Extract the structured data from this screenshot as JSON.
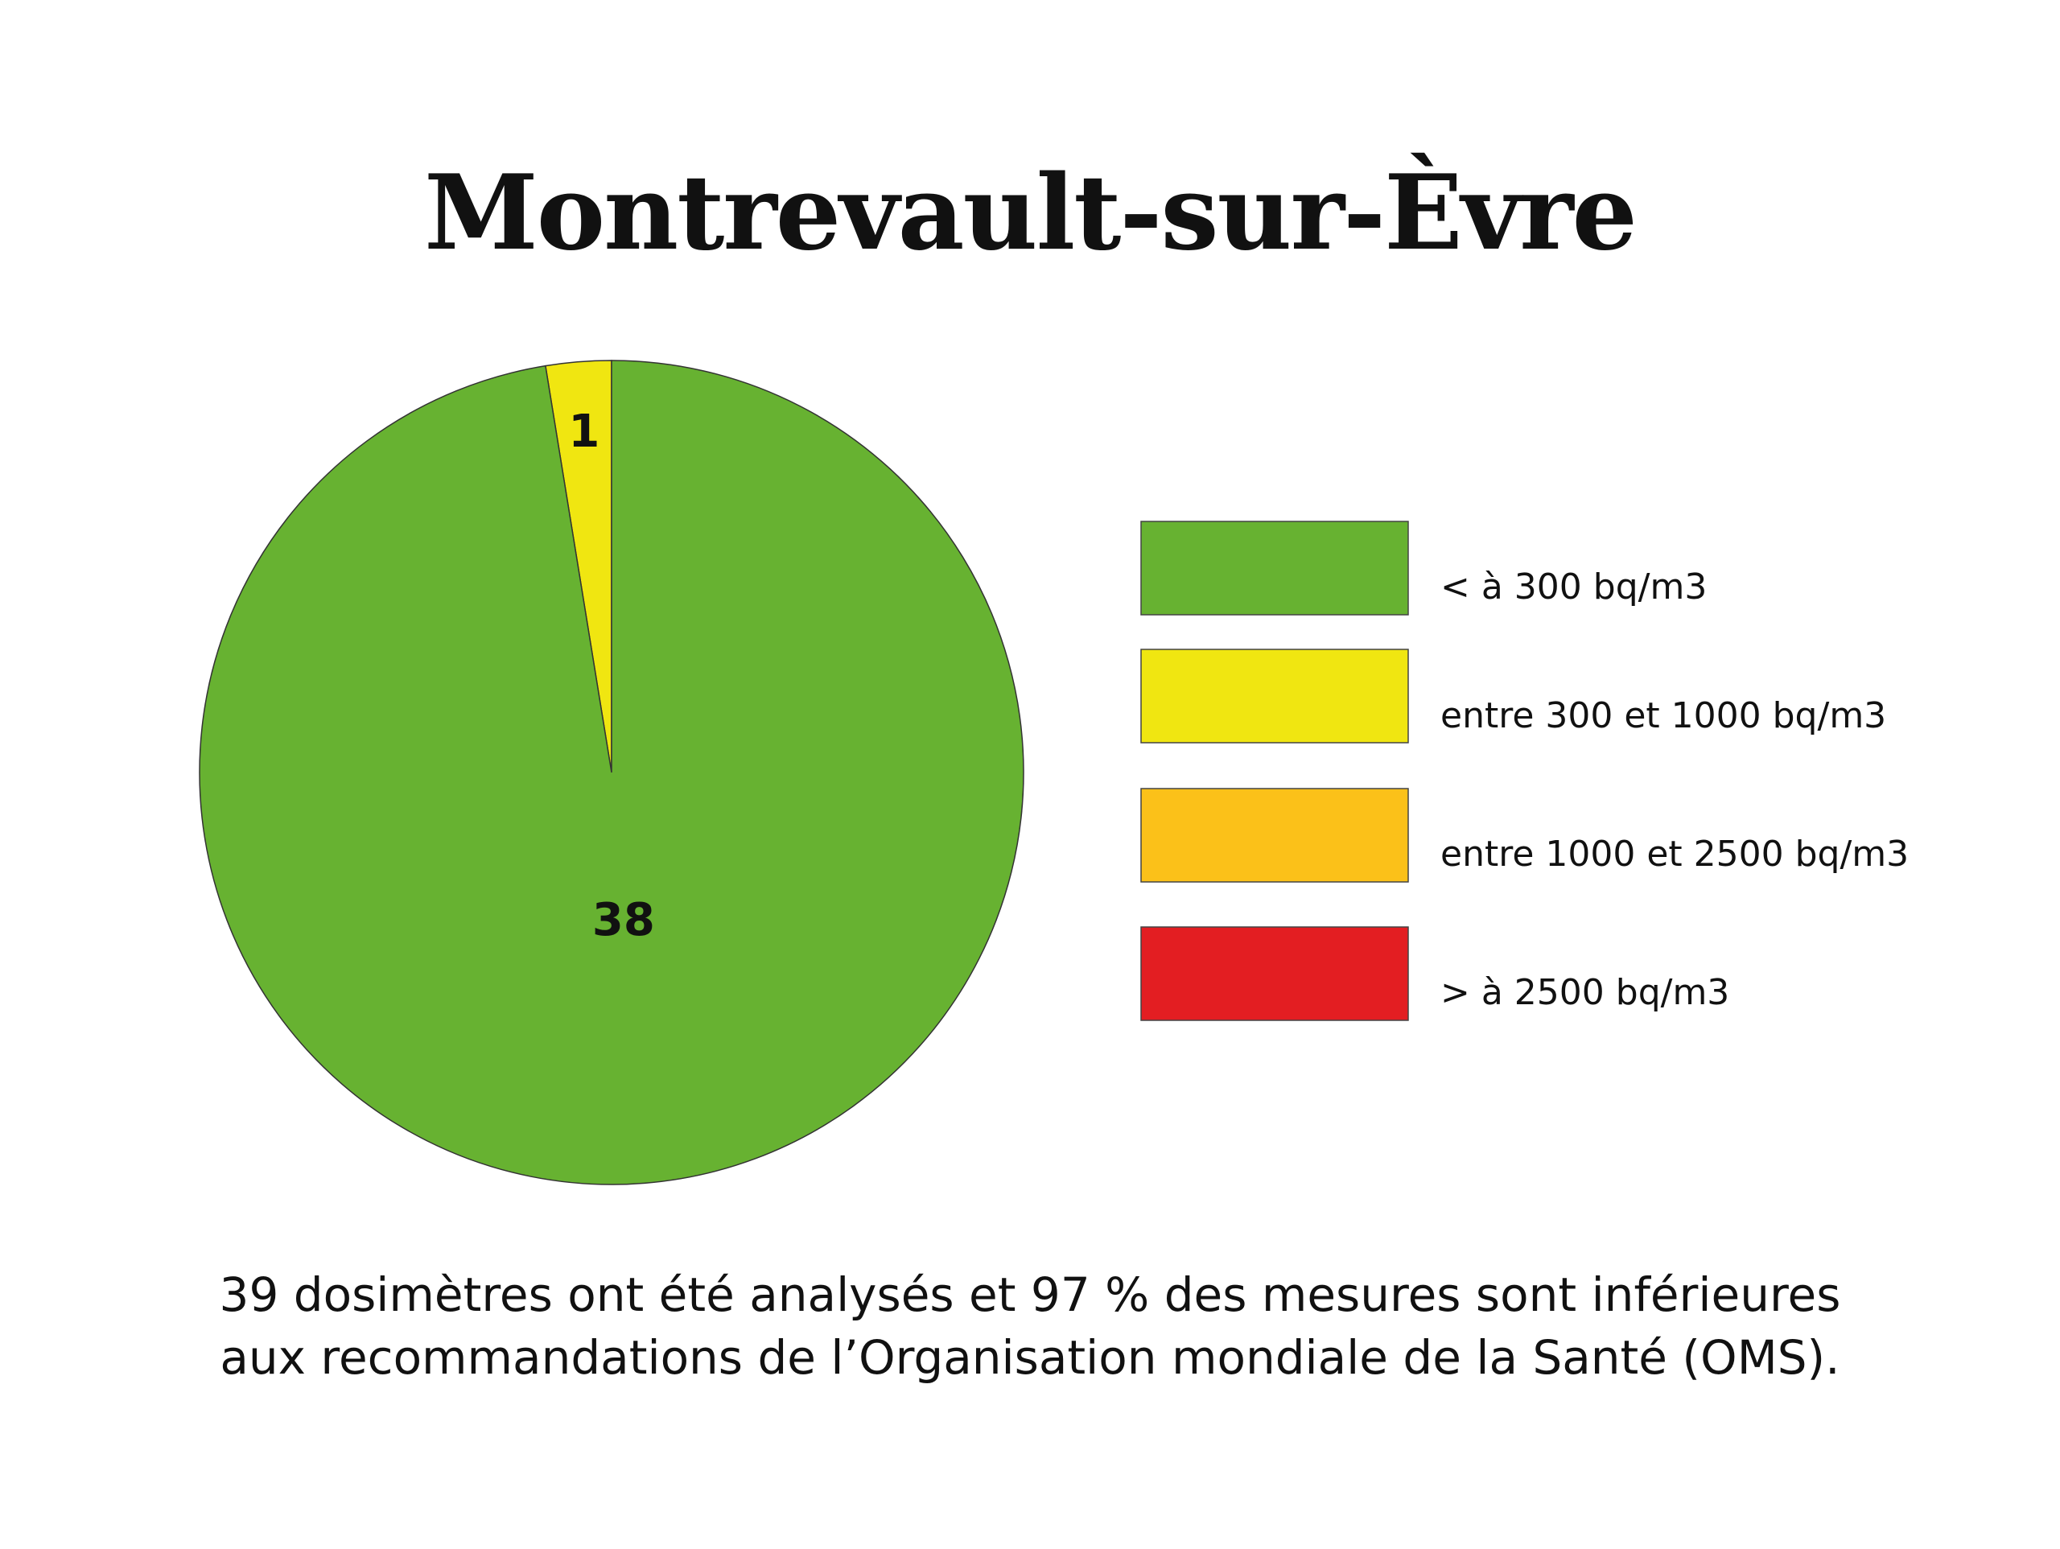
{
  "chart_data": {
    "type": "pie",
    "title": "Montrevault-sur-Èvre",
    "slices": [
      {
        "label": "< à 300 bq/m3",
        "value": 38,
        "color": "#67b231"
      },
      {
        "label": "entre 300 et 1000 bq/m3",
        "value": 1,
        "color": "#f0e611"
      },
      {
        "label": "entre 1000 et 2500 bq/m3",
        "value": 0,
        "color": "#fbc119"
      },
      {
        "label": "> à 2500 bq/m3",
        "value": 0,
        "color": "#e31e22"
      }
    ],
    "data_labels": [
      "38",
      "1"
    ],
    "legend_position": "right"
  },
  "caption": {
    "line1": "39 dosimètres ont été analysés et 97 % des mesures sont inférieures",
    "line2": "aux recommandations de l’Organisation mondiale de la Santé (OMS)."
  }
}
